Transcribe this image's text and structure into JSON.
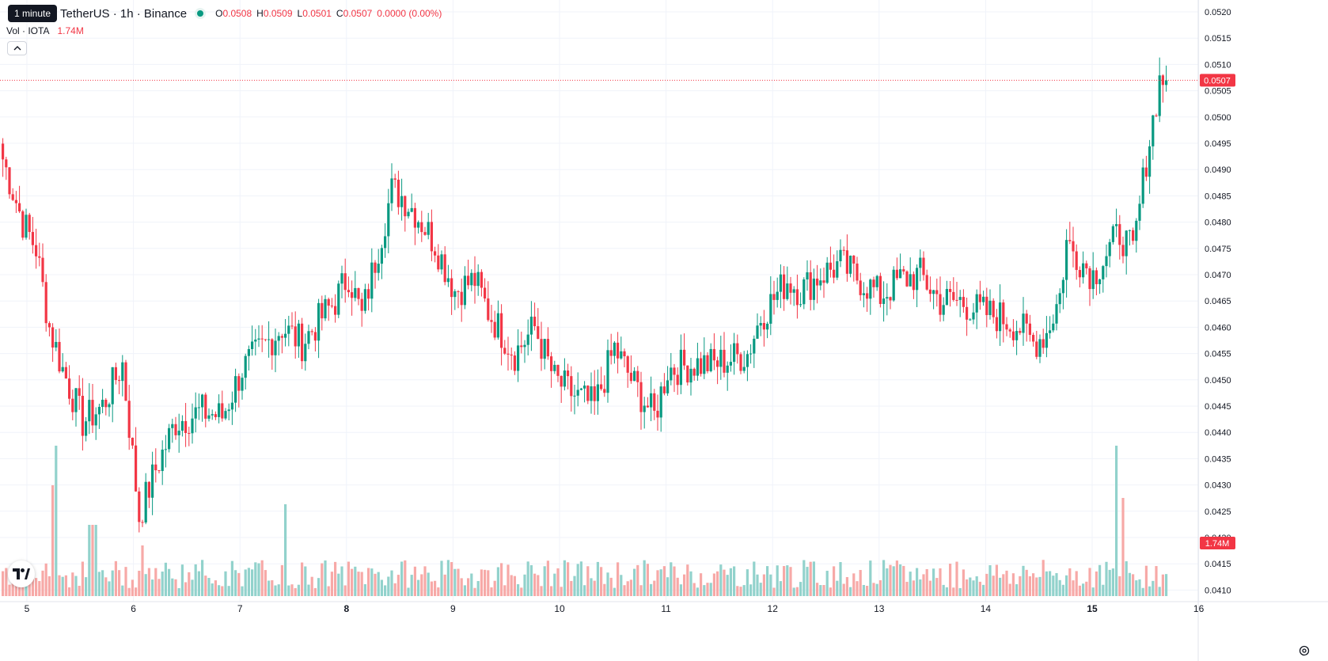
{
  "header": {
    "interval_tooltip": "1 minute",
    "symbol_title": "TetherUS · 1h · Binance",
    "ohlc": {
      "o_label": "O",
      "o_value": "0.0508",
      "h_label": "H",
      "h_value": "0.0509",
      "l_label": "L",
      "l_value": "0.0501",
      "c_label": "C",
      "c_value": "0.0507",
      "change": "0.0000 (0.00%)"
    },
    "volume_title": "Vol · IOTA",
    "volume_value": "1.74M"
  },
  "colors": {
    "up": "#089981",
    "down": "#f23645",
    "up_vol": "#92d2cc",
    "down_vol": "#f7a9a7",
    "grid": "#f0f3fa"
  },
  "icons": {
    "collapse": "chevron-up-icon",
    "logo": "tradingview-logo-icon",
    "settings": "gear-icon"
  },
  "chart_data": {
    "type": "candlestick",
    "ylim": [
      0.0407,
      0.0522
    ],
    "y_ticks": [
      "0.0520",
      "0.0515",
      "0.0510",
      "0.0505",
      "0.0500",
      "0.0495",
      "0.0490",
      "0.0485",
      "0.0480",
      "0.0475",
      "0.0470",
      "0.0465",
      "0.0460",
      "0.0455",
      "0.0450",
      "0.0445",
      "0.0440",
      "0.0435",
      "0.0430",
      "0.0425",
      "0.0420",
      "0.0415",
      "0.0410"
    ],
    "x_ticks": [
      {
        "label": "5",
        "day": 5,
        "bold": false
      },
      {
        "label": "6",
        "day": 6,
        "bold": false
      },
      {
        "label": "7",
        "day": 7,
        "bold": false
      },
      {
        "label": "8",
        "day": 8,
        "bold": true
      },
      {
        "label": "9",
        "day": 9,
        "bold": false
      },
      {
        "label": "10",
        "day": 10,
        "bold": false
      },
      {
        "label": "11",
        "day": 11,
        "bold": false
      },
      {
        "label": "12",
        "day": 12,
        "bold": false
      },
      {
        "label": "13",
        "day": 13,
        "bold": false
      },
      {
        "label": "14",
        "day": 14,
        "bold": false
      },
      {
        "label": "15",
        "day": 15,
        "bold": true
      },
      {
        "label": "16",
        "day": 16,
        "bold": false
      }
    ],
    "last_price_label": "0.0507",
    "last_price": 0.0507,
    "last_volume_label": "1.74M",
    "anchors": [
      [
        0,
        0.0492
      ],
      [
        6,
        0.048
      ],
      [
        10,
        0.0475
      ],
      [
        14,
        0.046
      ],
      [
        18,
        0.0452
      ],
      [
        24,
        0.0442
      ],
      [
        30,
        0.0445
      ],
      [
        36,
        0.0453
      ],
      [
        41,
        0.0424
      ],
      [
        46,
        0.0433
      ],
      [
        52,
        0.0442
      ],
      [
        60,
        0.0444
      ],
      [
        66,
        0.0443
      ],
      [
        72,
        0.0452
      ],
      [
        78,
        0.0456
      ],
      [
        84,
        0.046
      ],
      [
        90,
        0.0457
      ],
      [
        96,
        0.0462
      ],
      [
        100,
        0.0465
      ],
      [
        104,
        0.047
      ],
      [
        108,
        0.0462
      ],
      [
        114,
        0.0478
      ],
      [
        117,
        0.0486
      ],
      [
        120,
        0.0485
      ],
      [
        124,
        0.0482
      ],
      [
        130,
        0.0476
      ],
      [
        136,
        0.0467
      ],
      [
        142,
        0.0469
      ],
      [
        146,
        0.0463
      ],
      [
        154,
        0.0455
      ],
      [
        160,
        0.046
      ],
      [
        166,
        0.045
      ],
      [
        172,
        0.0447
      ],
      [
        178,
        0.0445
      ],
      [
        184,
        0.0456
      ],
      [
        190,
        0.0449
      ],
      [
        196,
        0.0443
      ],
      [
        200,
        0.0452
      ],
      [
        208,
        0.0453
      ],
      [
        214,
        0.0453
      ],
      [
        224,
        0.0455
      ],
      [
        228,
        0.0462
      ],
      [
        236,
        0.0469
      ],
      [
        240,
        0.0467
      ],
      [
        246,
        0.047
      ],
      [
        252,
        0.0472
      ],
      [
        258,
        0.0469
      ],
      [
        264,
        0.0466
      ],
      [
        270,
        0.0469
      ],
      [
        276,
        0.047
      ],
      [
        282,
        0.0465
      ],
      [
        288,
        0.0465
      ],
      [
        294,
        0.0463
      ],
      [
        300,
        0.0462
      ],
      [
        306,
        0.046
      ],
      [
        310,
        0.0457
      ],
      [
        314,
        0.0459
      ],
      [
        318,
        0.0466
      ],
      [
        320,
        0.0476
      ],
      [
        324,
        0.0473
      ],
      [
        328,
        0.047
      ],
      [
        332,
        0.0474
      ],
      [
        336,
        0.0478
      ],
      [
        340,
        0.0474
      ],
      [
        344,
        0.0492
      ],
      [
        348,
        0.0507
      ],
      [
        350,
        0.0507
      ]
    ],
    "volume_spikes": [
      [
        15,
        0.7
      ],
      [
        16,
        0.95
      ],
      [
        26,
        0.45
      ],
      [
        27,
        0.45
      ],
      [
        28,
        0.45
      ],
      [
        42,
        0.32
      ],
      [
        85,
        0.58
      ],
      [
        335,
        0.95
      ],
      [
        337,
        0.62
      ],
      [
        338,
        0.22
      ]
    ]
  }
}
